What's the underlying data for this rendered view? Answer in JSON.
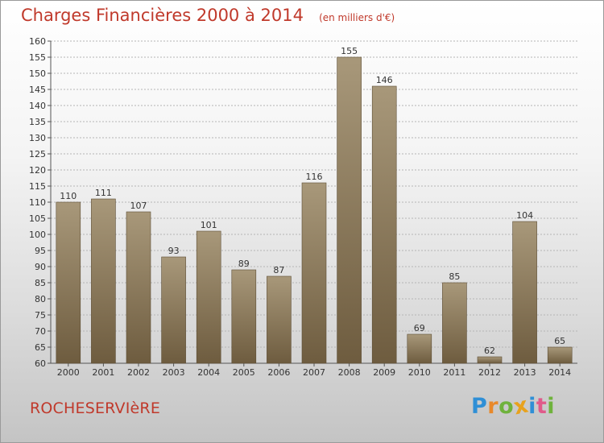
{
  "header": {
    "title": "Charges Financières 2000 à 2014",
    "subtitle": "(en milliers d'€)"
  },
  "footer": {
    "commune": "ROCHESERVIèRE",
    "logo_letters": [
      "P",
      "r",
      "o",
      "x",
      "i",
      "t",
      "i"
    ],
    "logo_colors": [
      "#2f8fd6",
      "#e8892b",
      "#6fb23c",
      "#e8a21c",
      "#2f8fd6",
      "#e05a8a",
      "#6fb23c"
    ]
  },
  "colors": {
    "bar_top": "#a8987a",
    "bar_bottom": "#6e5c3f",
    "grid": "#b5b5b5",
    "text": "#333333",
    "accent": "#c0392b"
  },
  "chart_data": {
    "type": "bar",
    "categories": [
      "2000",
      "2001",
      "2002",
      "2003",
      "2004",
      "2005",
      "2006",
      "2007",
      "2008",
      "2009",
      "2010",
      "2011",
      "2012",
      "2013",
      "2014"
    ],
    "values": [
      110,
      111,
      107,
      93,
      101,
      89,
      87,
      116,
      155,
      146,
      69,
      85,
      62,
      104,
      65
    ],
    "ylim": [
      60,
      160
    ],
    "yticks": [
      60,
      65,
      70,
      75,
      80,
      85,
      90,
      95,
      100,
      105,
      110,
      115,
      120,
      125,
      130,
      135,
      140,
      145,
      150,
      155,
      160
    ],
    "grid": true
  }
}
